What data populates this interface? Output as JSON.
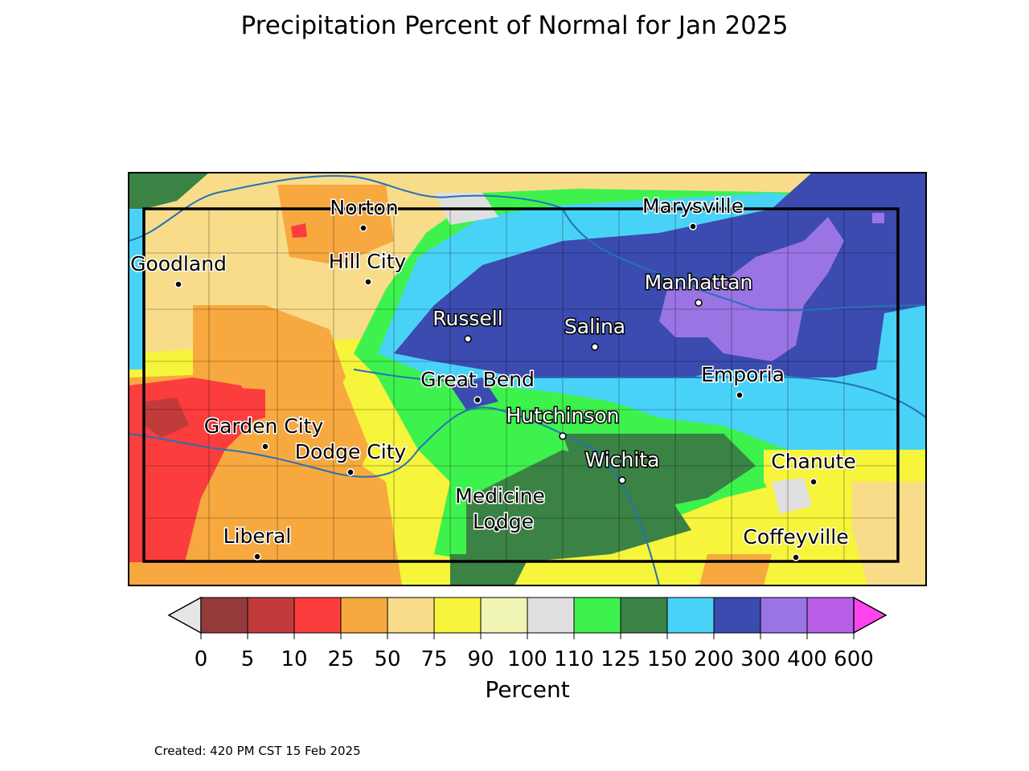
{
  "title": "Precipitation Percent of Normal for Jan 2025",
  "footer": "Created: 420 PM CST 15 Feb 2025",
  "colorbar": {
    "label": "Percent",
    "ticks": [
      "0",
      "5",
      "10",
      "25",
      "50",
      "75",
      "90",
      "100",
      "110",
      "125",
      "150",
      "200",
      "300",
      "400",
      "600"
    ],
    "under_color": "#e6e6e6",
    "over_color": "#ff44ee",
    "bins": [
      {
        "from": "0",
        "to": "5",
        "color": "#943a3a"
      },
      {
        "from": "5",
        "to": "10",
        "color": "#c23b3b"
      },
      {
        "from": "10",
        "to": "25",
        "color": "#fb3d3d"
      },
      {
        "from": "25",
        "to": "50",
        "color": "#f7a93f"
      },
      {
        "from": "50",
        "to": "75",
        "color": "#f8dc8a"
      },
      {
        "from": "75",
        "to": "90",
        "color": "#f6f43b"
      },
      {
        "from": "90",
        "to": "100",
        "color": "#f1f5b4"
      },
      {
        "from": "100",
        "to": "110",
        "color": "#dfdfdf"
      },
      {
        "from": "110",
        "to": "125",
        "color": "#3ef24d"
      },
      {
        "from": "125",
        "to": "150",
        "color": "#3b8245"
      },
      {
        "from": "150",
        "to": "200",
        "color": "#49d2f7"
      },
      {
        "from": "200",
        "to": "300",
        "color": "#3b4baf"
      },
      {
        "from": "300",
        "to": "400",
        "color": "#9a74e3"
      },
      {
        "from": "400",
        "to": "600",
        "color": "#b85ee6"
      }
    ]
  },
  "cities": [
    {
      "name": "Norton",
      "label_color": "#000000"
    },
    {
      "name": "Marysville",
      "label_color": "#000000"
    },
    {
      "name": "Goodland",
      "label_color": "#000000"
    },
    {
      "name": "Hill City",
      "label_color": "#000000"
    },
    {
      "name": "Manhattan",
      "label_color": "#ffffff"
    },
    {
      "name": "Russell",
      "label_color": "#ffffff"
    },
    {
      "name": "Salina",
      "label_color": "#ffffff"
    },
    {
      "name": "Emporia",
      "label_color": "#000000"
    },
    {
      "name": "Great Bend",
      "label_color": "#000000"
    },
    {
      "name": "Hutchinson",
      "label_color": "#ffffff"
    },
    {
      "name": "Garden City",
      "label_color": "#000000"
    },
    {
      "name": "Dodge City",
      "label_color": "#000000"
    },
    {
      "name": "Wichita",
      "label_color": "#ffffff"
    },
    {
      "name": "Chanute",
      "label_color": "#000000"
    },
    {
      "name": "Medicine Lodge",
      "label_color": "#000000"
    },
    {
      "name": "Coffeyville",
      "label_color": "#000000"
    },
    {
      "name": "Liberal",
      "label_color": "#000000"
    }
  ]
}
